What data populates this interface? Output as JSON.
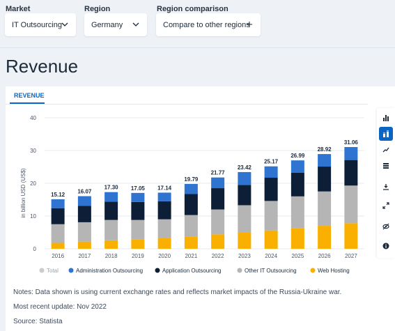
{
  "filters": {
    "market": {
      "label": "Market",
      "value": "IT Outsourcing"
    },
    "region": {
      "label": "Region",
      "value": "Germany"
    },
    "comparison": {
      "label": "Region comparison",
      "button": "Compare to other regions"
    }
  },
  "page_title": "Revenue",
  "tabs": [
    {
      "label": "REVENUE",
      "active": true
    }
  ],
  "toolbar": [
    {
      "name": "bar-chart-icon",
      "active": false
    },
    {
      "name": "stacked-bar-icon",
      "active": true
    },
    {
      "name": "trend-line-icon",
      "active": false
    },
    {
      "name": "table-icon",
      "active": false
    },
    {
      "name": "download-icon",
      "active": false
    },
    {
      "name": "fullscreen-icon",
      "active": false
    },
    {
      "name": "hide-icon",
      "active": false
    },
    {
      "name": "info-icon",
      "active": false
    }
  ],
  "chart_data": {
    "type": "bar",
    "stacked": true,
    "ylabel": "in billion USD (US$)",
    "ylim": [
      0,
      40
    ],
    "yticks": [
      0,
      10,
      20,
      30,
      40
    ],
    "grid": true,
    "legend_position": "bottom-left",
    "categories": [
      "2016",
      "2017",
      "2018",
      "2019",
      "2020",
      "2021",
      "2022",
      "2023",
      "2024",
      "2025",
      "2026",
      "2027"
    ],
    "totals": [
      "15.12",
      "16.07",
      "17.30",
      "17.05",
      "17.14",
      "19.79",
      "21.77",
      "23.42",
      "25.17",
      "26.99",
      "28.92",
      "31.06"
    ],
    "series": [
      {
        "name": "Web Hosting",
        "color": "#f9b000",
        "values": [
          1.8,
          2.2,
          2.6,
          2.8,
          3.2,
          3.8,
          4.4,
          4.9,
          5.6,
          6.2,
          7.0,
          7.8
        ]
      },
      {
        "name": "Other IT Outsourcing",
        "color": "#b5b5b5",
        "values": [
          5.7,
          5.9,
          6.2,
          6.0,
          5.8,
          6.5,
          7.6,
          8.4,
          9.0,
          9.8,
          10.5,
          11.5
        ]
      },
      {
        "name": "Application Outsourcing",
        "color": "#0d1f36",
        "values": [
          4.9,
          5.0,
          5.6,
          5.5,
          5.5,
          6.4,
          6.5,
          6.2,
          7.1,
          7.2,
          7.6,
          7.8
        ]
      },
      {
        "name": "Administration Outsourcing",
        "color": "#2f74d0",
        "values": [
          2.72,
          2.97,
          2.9,
          2.75,
          2.64,
          3.09,
          3.27,
          3.92,
          3.47,
          3.79,
          3.82,
          3.96
        ]
      }
    ],
    "legend": [
      {
        "name": "Total",
        "color": "#cccccc"
      },
      {
        "name": "Administration Outsourcing",
        "color": "#2f74d0"
      },
      {
        "name": "Application Outsourcing",
        "color": "#0d1f36"
      },
      {
        "name": "Other IT Outsourcing",
        "color": "#b5b5b5"
      },
      {
        "name": "Web Hosting",
        "color": "#f9b000"
      }
    ]
  },
  "notes": {
    "note": "Notes: Data shown is using current exchange rates and reflects market impacts of the Russia-Ukraine war.",
    "update": "Most recent update: Nov 2022",
    "source": "Source: Statista"
  }
}
